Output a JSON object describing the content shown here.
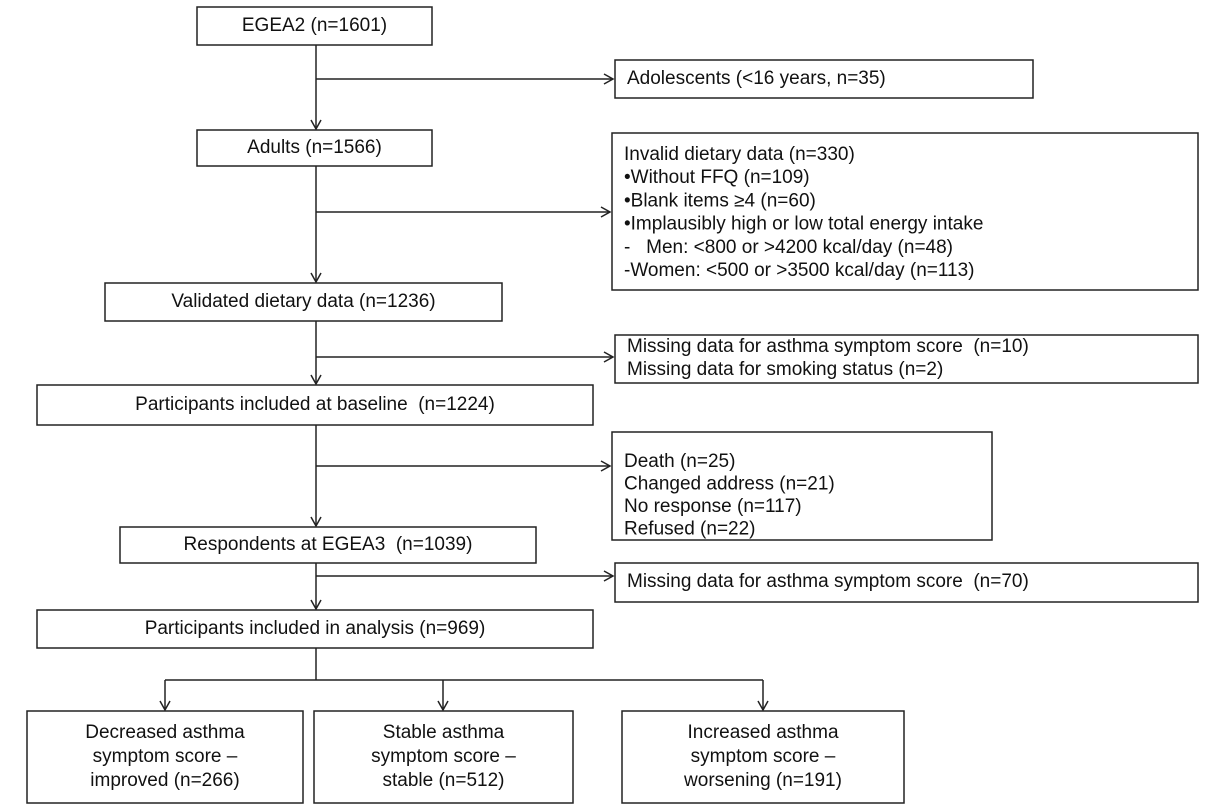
{
  "nodes": [
    {
      "lines": [
        "EGEA2 (n=1601)"
      ]
    },
    {
      "lines": [
        "Adolescents (<16 years, n=35)"
      ]
    },
    {
      "lines": [
        "Adults (n=1566)"
      ]
    },
    {
      "lines": [
        "Invalid dietary data (n=330)",
        "•Without FFQ (n=109)",
        "•Blank items ≥4 (n=60)",
        "•Implausibly high or low total energy intake",
        "-   Men: <800 or >4200 kcal/day (n=48)",
        "-Women: <500 or >3500 kcal/day (n=113)"
      ]
    },
    {
      "lines": [
        "Validated dietary data (n=1236)"
      ]
    },
    {
      "lines": [
        "Missing data for asthma symptom score  (n=10)",
        "Missing data for smoking status (n=2)"
      ]
    },
    {
      "lines": [
        "Participants included at baseline  (n=1224)"
      ]
    },
    {
      "lines": [
        "Death (n=25)",
        "Changed address (n=21)",
        "No response (n=117)",
        "Refused (n=22)"
      ]
    },
    {
      "lines": [
        "Respondents at EGEA3  (n=1039)"
      ]
    },
    {
      "lines": [
        "Missing data for asthma symptom score  (n=70)"
      ]
    },
    {
      "lines": [
        "Participants included in analysis (n=969)"
      ]
    },
    {
      "lines": [
        "Decreased asthma",
        "symptom score –",
        "improved (n=266)"
      ]
    },
    {
      "lines": [
        "Stable asthma",
        "symptom score –",
        "stable (n=512)"
      ]
    },
    {
      "lines": [
        "Increased asthma",
        "symptom score –",
        "worsening (n=191)"
      ]
    }
  ]
}
